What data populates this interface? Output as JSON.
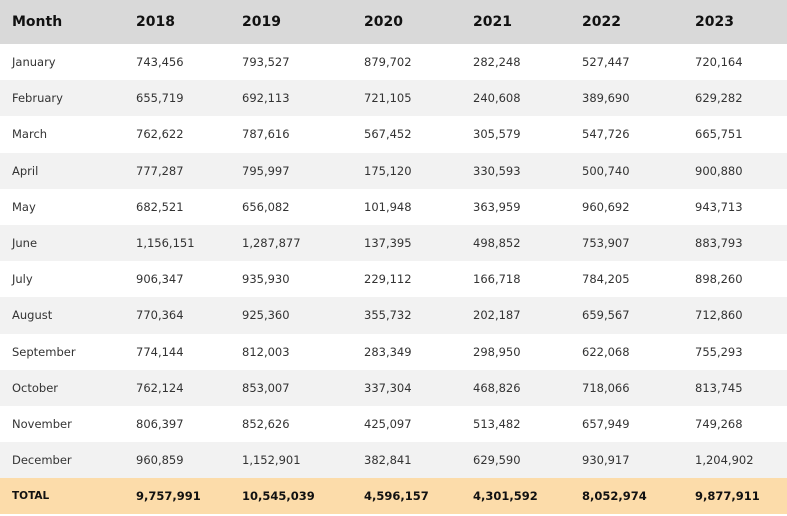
{
  "table": {
    "headers": [
      "Month",
      "2018",
      "2019",
      "2020",
      "2021",
      "2022",
      "2023"
    ],
    "rows": [
      [
        "January",
        "743,456",
        "793,527",
        "879,702",
        "282,248",
        "527,447",
        "720,164"
      ],
      [
        "February",
        "655,719",
        "692,113",
        "721,105",
        "240,608",
        "389,690",
        "629,282"
      ],
      [
        "March",
        "762,622",
        "787,616",
        "567,452",
        "305,579",
        "547,726",
        "665,751"
      ],
      [
        "April",
        "777,287",
        "795,997",
        "175,120",
        "330,593",
        "500,740",
        "900,880"
      ],
      [
        "May",
        "682,521",
        "656,082",
        "101,948",
        "363,959",
        "960,692",
        "943,713"
      ],
      [
        "June",
        "1,156,151",
        "1,287,877",
        "137,395",
        "498,852",
        "753,907",
        "883,793"
      ],
      [
        "July",
        "906,347",
        "935,930",
        "229,112",
        "166,718",
        "784,205",
        "898,260"
      ],
      [
        "August",
        "770,364",
        "925,360",
        "355,732",
        "202,187",
        "659,567",
        "712,860"
      ],
      [
        "September",
        "774,144",
        "812,003",
        "283,349",
        "298,950",
        "622,068",
        "755,293"
      ],
      [
        "October",
        "762,124",
        "853,007",
        "337,304",
        "468,826",
        "718,066",
        "813,745"
      ],
      [
        "November",
        "806,397",
        "852,626",
        "425,097",
        "513,482",
        "657,949",
        "749,268"
      ],
      [
        "December",
        "960,859",
        "1,152,901",
        "382,841",
        "629,590",
        "930,917",
        "1,204,902"
      ]
    ],
    "total": [
      "TOTAL",
      "9,757,991",
      "10,545,039",
      "4,596,157",
      "4,301,592",
      "8,052,974",
      "9,877,911"
    ]
  },
  "colors": {
    "header_bg": "#d9d9d9",
    "row_alt_bg": "#f2f2f2",
    "total_bg": "#fcdcaa"
  }
}
